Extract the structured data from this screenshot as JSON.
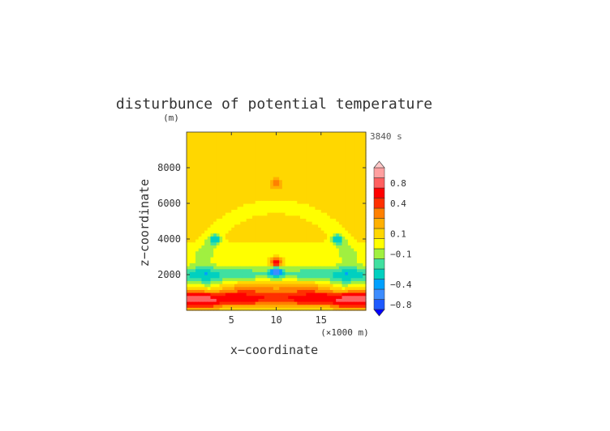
{
  "chart_data": {
    "type": "heatmap",
    "title": "disturbunce of potential temperature",
    "time_label": "3840 s",
    "xlabel": "x−coordinate",
    "x_units_label": "(×1000 m)",
    "ylabel": "z−coordinate",
    "y_units_label": "(m)",
    "xlim": [
      0,
      20
    ],
    "ylim": [
      0,
      10000
    ],
    "x_ticks": [
      5,
      10,
      15
    ],
    "x_tick_labels": [
      "5",
      "10",
      "15"
    ],
    "y_ticks": [
      2000,
      4000,
      6000,
      8000
    ],
    "y_tick_labels": [
      "2000",
      "4000",
      "6000",
      "8000"
    ],
    "colorbar": {
      "levels": [
        -1.0,
        -0.8,
        -0.6,
        -0.4,
        -0.3,
        -0.2,
        -0.1,
        0.0,
        0.1,
        0.2,
        0.3,
        0.4,
        0.6,
        0.8,
        1.0
      ],
      "colors": [
        "#0000ff",
        "#1e5aff",
        "#3c8cff",
        "#00a0ff",
        "#00d0c0",
        "#40e0a0",
        "#a0f040",
        "#ffff00",
        "#ffd700",
        "#ffb000",
        "#ff8000",
        "#ff3000",
        "#ff0000",
        "#ff6060",
        "#ffa0a0",
        "#ffc8c8"
      ],
      "labels": [
        "0.8",
        "0.4",
        "0.1",
        "−0.1",
        "−0.4",
        "−0.8"
      ],
      "label_values": [
        0.8,
        0.4,
        0.1,
        -0.1,
        -0.4,
        -0.8
      ],
      "extend": "both"
    },
    "features": [
      {
        "kind": "background",
        "value": 0.05
      },
      {
        "kind": "band",
        "z": [
          300,
          1000
        ],
        "value": 0.45
      },
      {
        "kind": "lobe",
        "x": 2.0,
        "z": 600,
        "value": 0.5
      },
      {
        "kind": "lobe",
        "x": 18.0,
        "z": 600,
        "value": 0.5
      },
      {
        "kind": "lobe",
        "x": 7.0,
        "z": 1300,
        "value": 0.35
      },
      {
        "kind": "lobe",
        "x": 13.0,
        "z": 1300,
        "value": 0.35
      },
      {
        "kind": "band",
        "z": [
          1500,
          2500
        ],
        "value": -0.3
      },
      {
        "kind": "arc",
        "x": 10.0,
        "z": 4500,
        "value": -0.05
      },
      {
        "kind": "spot",
        "x": 10.0,
        "z": 7150,
        "value": 0.25
      },
      {
        "kind": "spot",
        "x": 10.0,
        "z": 2700,
        "value": 0.6
      },
      {
        "kind": "spot",
        "x": 10.0,
        "z": 2200,
        "value": -0.7
      },
      {
        "kind": "spot",
        "x": 3.2,
        "z": 4000,
        "value": -0.35
      },
      {
        "kind": "spot",
        "x": 16.8,
        "z": 4000,
        "value": -0.35
      }
    ]
  }
}
